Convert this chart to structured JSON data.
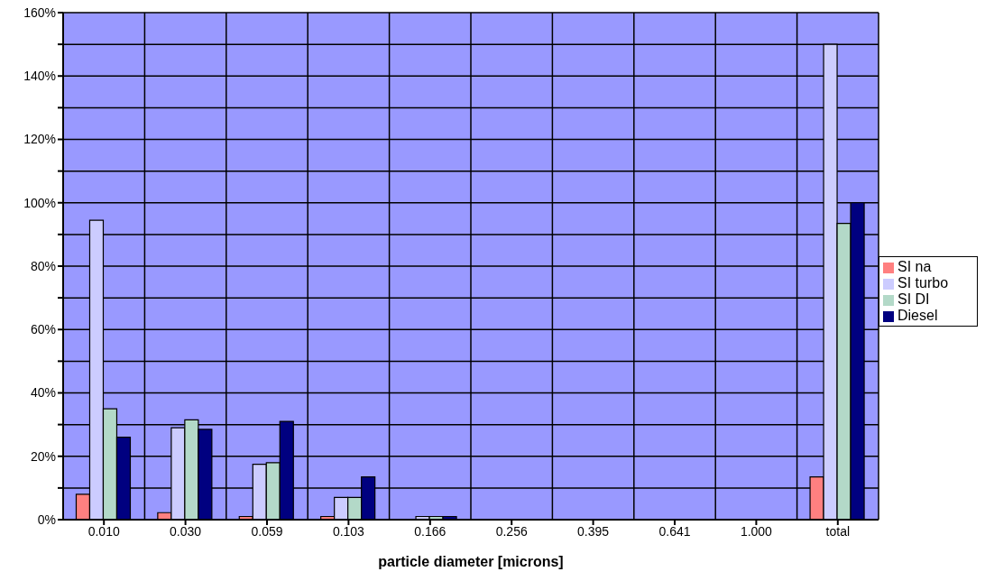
{
  "chart_data": {
    "type": "bar",
    "xlabel": "particle diameter [microns]",
    "categories": [
      "0.010",
      "0.030",
      "0.059",
      "0.103",
      "0.166",
      "0.256",
      "0.395",
      "0.641",
      "1.000",
      "total"
    ],
    "series": [
      {
        "name": "SI na",
        "color": "#ff8080",
        "values": [
          8,
          2.2,
          1,
          1,
          0,
          0,
          0,
          0,
          0,
          13.5
        ]
      },
      {
        "name": "SI turbo",
        "color": "#ccccff",
        "values": [
          94.5,
          29,
          17.5,
          7,
          1,
          0,
          0,
          0,
          0,
          150
        ]
      },
      {
        "name": "SI DI",
        "color": "#b3d9c8",
        "values": [
          35,
          31.5,
          18,
          7,
          1,
          0,
          0,
          0,
          0,
          93.5
        ]
      },
      {
        "name": "Diesel",
        "color": "#000080",
        "values": [
          26,
          28.5,
          31,
          13.5,
          1,
          0,
          0,
          0,
          0,
          100
        ]
      }
    ],
    "ylim": [
      0,
      160
    ],
    "yticks": [
      {
        "value": 0,
        "label": "0%"
      },
      {
        "value": 10,
        "label": null
      },
      {
        "value": 20,
        "label": "20%"
      },
      {
        "value": 30,
        "label": null
      },
      {
        "value": 40,
        "label": "40%"
      },
      {
        "value": 50,
        "label": null
      },
      {
        "value": 60,
        "label": "60%"
      },
      {
        "value": 70,
        "label": null
      },
      {
        "value": 80,
        "label": "80%"
      },
      {
        "value": 90,
        "label": null
      },
      {
        "value": 100,
        "label": "100%"
      },
      {
        "value": 110,
        "label": null
      },
      {
        "value": 120,
        "label": "120%"
      },
      {
        "value": 130,
        "label": null
      },
      {
        "value": 140,
        "label": "140%"
      },
      {
        "value": 150,
        "label": null
      },
      {
        "value": 160,
        "label": "160%"
      }
    ],
    "grid": true,
    "legend": "right"
  }
}
